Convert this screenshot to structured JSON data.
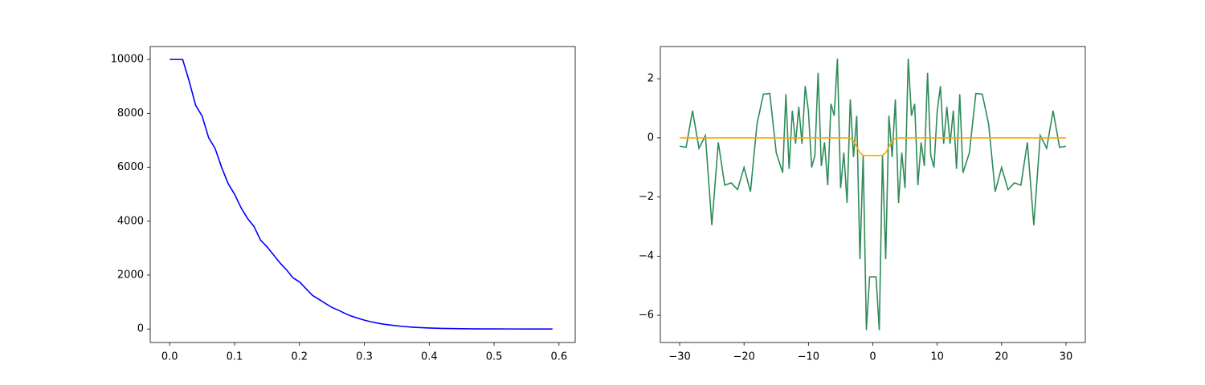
{
  "chart_data": [
    {
      "type": "line",
      "xlim": [
        -0.03,
        0.625
      ],
      "ylim": [
        -500,
        10480
      ],
      "xticks": [
        {
          "value": 0,
          "label": "0.0"
        },
        0.1,
        0.2,
        0.3,
        0.4,
        0.5,
        0.6
      ],
      "yticks": [
        0,
        2000,
        4000,
        6000,
        8000,
        10000
      ],
      "series": [
        {
          "color": "#0000ff",
          "x": [
            0,
            0.01,
            0.02,
            0.03,
            0.04,
            0.05,
            0.06,
            0.07,
            0.08,
            0.09,
            0.1,
            0.11,
            0.12,
            0.13,
            0.14,
            0.15,
            0.16,
            0.17,
            0.18,
            0.19,
            0.2,
            0.21,
            0.22,
            0.23,
            0.24,
            0.25,
            0.26,
            0.27,
            0.28,
            0.29,
            0.3,
            0.31,
            0.32,
            0.33,
            0.34,
            0.35,
            0.36,
            0.37,
            0.38,
            0.39,
            0.4,
            0.42,
            0.44,
            0.46,
            0.48,
            0.5,
            0.55,
            0.59
          ],
          "values": [
            10000,
            10000,
            10000,
            9200,
            8300,
            7900,
            7100,
            6700,
            6000,
            5400,
            5000,
            4500,
            4100,
            3800,
            3300,
            3050,
            2750,
            2450,
            2200,
            1900,
            1750,
            1500,
            1250,
            1100,
            950,
            800,
            700,
            580,
            480,
            400,
            330,
            270,
            220,
            180,
            150,
            120,
            95,
            75,
            60,
            48,
            38,
            24,
            15,
            9,
            5,
            3,
            1,
            0
          ]
        }
      ]
    },
    {
      "type": "line",
      "xlim": [
        -33,
        33
      ],
      "ylim": [
        -6.92,
        3.09
      ],
      "xticks": [
        {
          "value": -30,
          "label": "−30"
        },
        {
          "value": -20,
          "label": "−20"
        },
        {
          "value": -10,
          "label": "−10"
        },
        0,
        10,
        20,
        30
      ],
      "yticks": [
        {
          "value": -6,
          "label": "−6"
        },
        {
          "value": -4,
          "label": "−4"
        },
        {
          "value": -2,
          "label": "−2"
        },
        0,
        2
      ],
      "series": [
        {
          "color": "#2e8b57",
          "x": [
            -30,
            -29,
            -28,
            -27,
            -26,
            -25,
            -24,
            -23,
            -22,
            -21,
            -20,
            -19,
            -18,
            -17,
            -16,
            -15,
            -14,
            -13.5,
            -13,
            -12.5,
            -12,
            -11.5,
            -11,
            -10.5,
            -10,
            -9.5,
            -9,
            -8.5,
            -8,
            -7.5,
            -7,
            -6.5,
            -6,
            -5.5,
            -5,
            -4.5,
            -4,
            -3.5,
            -3,
            -2.5,
            -2,
            -1.5,
            -1,
            -0.5,
            0,
            0.5,
            1,
            1.5,
            2,
            2.5,
            3,
            3.5,
            4,
            4.5,
            5,
            5.5,
            6,
            6.5,
            7,
            7.5,
            8,
            8.5,
            9,
            9.5,
            10,
            10.5,
            11,
            11.5,
            12,
            12.5,
            13,
            13.5,
            14,
            15,
            16,
            17,
            18,
            19,
            20,
            21,
            22,
            23,
            24,
            25,
            26,
            27,
            28,
            29,
            30
          ],
          "values": [
            -0.28,
            -0.32,
            0.92,
            -0.35,
            0.08,
            -2.95,
            -0.15,
            -1.6,
            -1.52,
            -1.75,
            -1.0,
            -1.82,
            0.45,
            1.48,
            1.5,
            -0.5,
            -1.18,
            1.48,
            -1.05,
            0.92,
            -0.2,
            1.05,
            -0.2,
            1.75,
            0.9,
            -1.0,
            -0.6,
            2.2,
            -0.95,
            -0.15,
            -1.6,
            1.15,
            0.75,
            2.68,
            -1.7,
            -0.5,
            -2.2,
            1.3,
            -0.65,
            0.75,
            -4.1,
            -0.6,
            -6.5,
            -4.7,
            -4.7,
            -4.7,
            -6.5,
            -0.6,
            -4.1,
            0.75,
            -0.65,
            1.3,
            -2.2,
            -0.5,
            -1.7,
            2.68,
            0.75,
            1.15,
            -1.6,
            -0.15,
            -0.95,
            2.2,
            -0.6,
            -1.0,
            0.9,
            1.75,
            -0.2,
            1.05,
            -0.2,
            0.92,
            -1.05,
            1.48,
            -1.18,
            -0.5,
            1.5,
            1.48,
            0.45,
            -1.82,
            -1.0,
            -1.75,
            -1.52,
            -1.6,
            -0.15,
            -2.95,
            0.08,
            -0.35,
            0.92,
            -0.32,
            -0.28
          ]
        },
        {
          "color": "#ffa500",
          "x": [
            -30,
            -4,
            -3.5,
            -3,
            -2.5,
            -2,
            -1.5,
            0,
            1.5,
            2,
            2.5,
            3,
            3.5,
            4,
            30
          ],
          "values": [
            0,
            0,
            -0.02,
            -0.1,
            -0.3,
            -0.5,
            -0.59,
            -0.6,
            -0.59,
            -0.5,
            -0.3,
            -0.1,
            -0.02,
            0,
            0
          ]
        }
      ]
    }
  ]
}
